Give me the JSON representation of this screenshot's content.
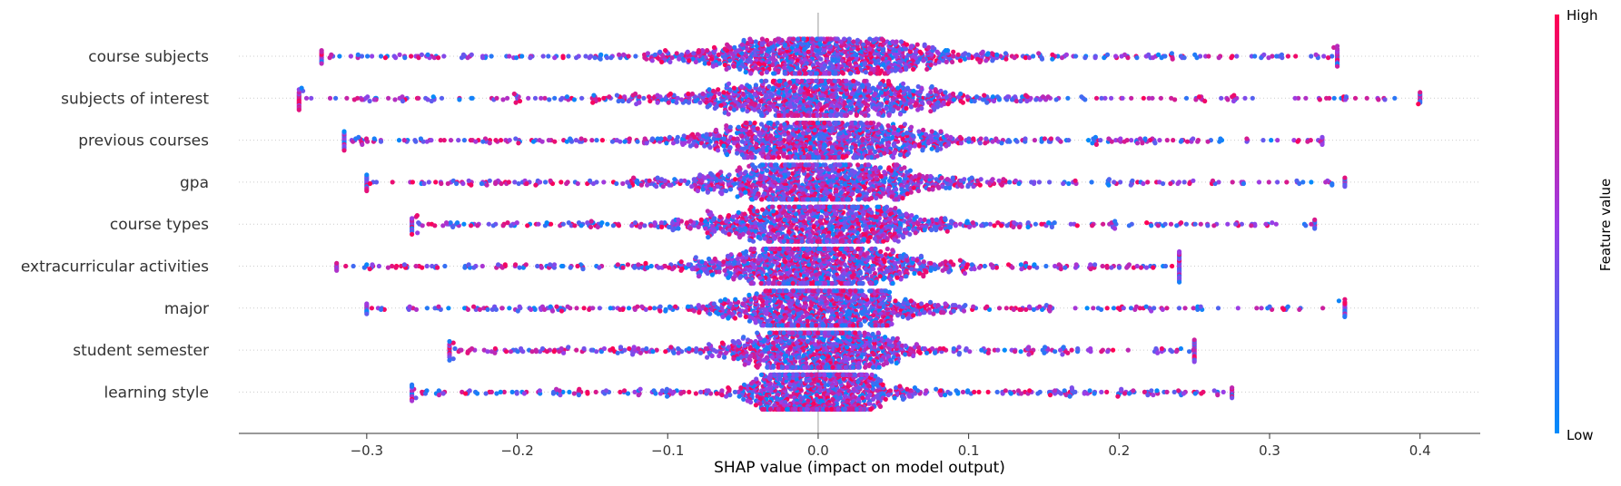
{
  "chart_data": {
    "type": "scatter",
    "subtype": "shap-beeswarm",
    "xlabel": "SHAP value (impact on model output)",
    "xlim": [
      -0.385,
      0.44
    ],
    "xticks": [
      -0.3,
      -0.2,
      -0.1,
      0.0,
      0.1,
      0.2,
      0.3,
      0.4
    ],
    "xtick_labels": [
      "−0.3",
      "−0.2",
      "−0.1",
      "0.0",
      "0.1",
      "0.2",
      "0.3",
      "0.4"
    ],
    "zero_line": true,
    "row_gridlines": "dotted",
    "features": [
      {
        "name": "course subjects",
        "min": -0.33,
        "max": 0.345,
        "core": 0.05,
        "tail_gap": 0.2
      },
      {
        "name": "subjects of interest",
        "min": -0.345,
        "max": 0.4,
        "core": 0.05,
        "tail_gap": 0.2
      },
      {
        "name": "previous courses",
        "min": -0.315,
        "max": 0.335,
        "core": 0.045,
        "tail_gap": 0.18
      },
      {
        "name": "gpa",
        "min": -0.3,
        "max": 0.35,
        "core": 0.045,
        "tail_gap": 0.18
      },
      {
        "name": "course types",
        "min": -0.27,
        "max": 0.33,
        "core": 0.04,
        "tail_gap": 0.17
      },
      {
        "name": "extracurricular activities",
        "min": -0.32,
        "max": 0.24,
        "core": 0.04,
        "tail_gap": 0.17
      },
      {
        "name": "major",
        "min": -0.3,
        "max": 0.35,
        "core": 0.035,
        "tail_gap": 0.16
      },
      {
        "name": "student semester",
        "min": -0.245,
        "max": 0.25,
        "core": 0.03,
        "tail_gap": 0.15
      },
      {
        "name": "learning style",
        "min": -0.27,
        "max": 0.275,
        "core": 0.025,
        "tail_gap": 0.14
      }
    ],
    "colorbar": {
      "label": "Feature value",
      "high_label": "High",
      "low_label": "Low",
      "high_color": "#ff0052",
      "low_color": "#008bfb"
    },
    "missing_value_color": "#777777"
  }
}
